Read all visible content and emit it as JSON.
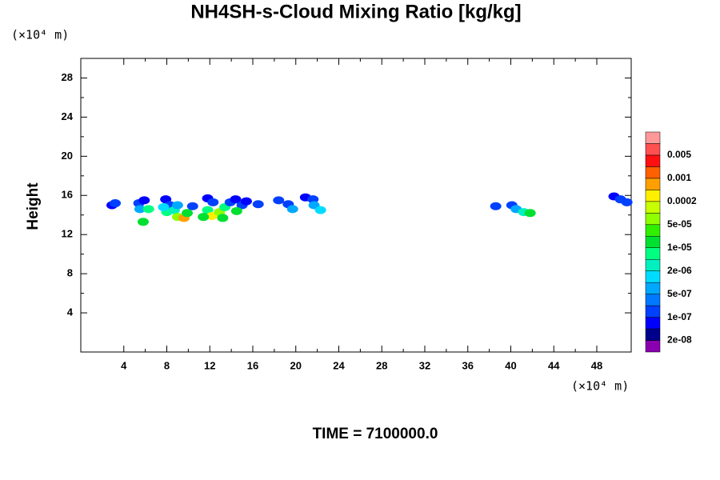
{
  "chart_data": {
    "type": "contour",
    "title": "NH4SH-s-Cloud Mixing Ratio [kg/kg]",
    "ylabel": "Height",
    "x_unit": "(×10⁴ m)",
    "y_unit": "(×10⁴ m)",
    "footer": "TIME = 7100000.0",
    "xlim": [
      0,
      51.2
    ],
    "ylim": [
      0,
      30
    ],
    "xticks": [
      4,
      8,
      12,
      16,
      20,
      24,
      28,
      32,
      36,
      40,
      44,
      48
    ],
    "yticks": [
      4,
      8,
      12,
      16,
      20,
      24,
      28
    ],
    "colorbar": {
      "colors": [
        "#8a00b0",
        "#00008c",
        "#0000ff",
        "#0040ff",
        "#0078ff",
        "#00a8ff",
        "#00dcff",
        "#00f0c0",
        "#00ff80",
        "#00e030",
        "#30f000",
        "#90ff00",
        "#c8ff00",
        "#fff000",
        "#ffa000",
        "#ff6000",
        "#ff1010",
        "#ff5050",
        "#ff9898"
      ],
      "ticks": [
        {
          "value": 2e-08,
          "label": "2e-08"
        },
        {
          "value": 1e-07,
          "label": "1e-07"
        },
        {
          "value": 5e-07,
          "label": "5e-07"
        },
        {
          "value": 2e-06,
          "label": "2e-06"
        },
        {
          "value": 1e-05,
          "label": "1e-05"
        },
        {
          "value": 5e-05,
          "label": "5e-05"
        },
        0.0002,
        0.001,
        0.005
      ]
    },
    "x": [
      2.9,
      3.2,
      5.4,
      5.9,
      5.5,
      6.3,
      5.8,
      7.9,
      8.3,
      8.0,
      8.7,
      9.0,
      9.6,
      9.0,
      7.7,
      9.9,
      10.4,
      11.8,
      12.3,
      11.8,
      12.2,
      12.9,
      13.4,
      13.9,
      14.4,
      15.0,
      14.5,
      11.4,
      13.2,
      15.4,
      16.5,
      18.4,
      19.3,
      19.7,
      20.9,
      21.6,
      21.7,
      22.3,
      38.6,
      40.1,
      40.5,
      41.2,
      41.8,
      49.6,
      50.2,
      50.8
    ],
    "y": [
      15.0,
      15.2,
      15.2,
      15.5,
      14.6,
      14.6,
      13.3,
      15.6,
      15.0,
      14.3,
      14.5,
      13.8,
      13.7,
      15.0,
      14.8,
      14.2,
      14.9,
      15.7,
      15.3,
      14.5,
      13.9,
      14.3,
      14.8,
      15.3,
      15.6,
      15.0,
      14.4,
      13.8,
      13.7,
      15.4,
      15.1,
      15.5,
      15.1,
      14.6,
      15.8,
      15.6,
      15.0,
      14.5,
      14.9,
      15.0,
      14.6,
      14.3,
      14.2,
      15.9,
      15.6,
      15.3
    ],
    "values": [
      5e-08,
      2e-07,
      1e-07,
      5e-08,
      5e-07,
      5e-06,
      2e-05,
      5e-08,
      2e-07,
      5e-06,
      2e-06,
      5e-05,
      0.0005,
      5e-07,
      1e-06,
      1e-05,
      2e-07,
      5e-08,
      2e-07,
      5e-06,
      0.0003,
      5e-05,
      5e-06,
      2e-07,
      5e-08,
      2e-07,
      2e-05,
      2e-05,
      1e-05,
      5e-08,
      2e-07,
      2e-07,
      1e-07,
      5e-07,
      5e-08,
      1e-07,
      5e-07,
      1e-06,
      2e-07,
      1e-07,
      5e-07,
      2e-06,
      1e-05,
      5e-08,
      2e-07,
      1e-07
    ]
  }
}
